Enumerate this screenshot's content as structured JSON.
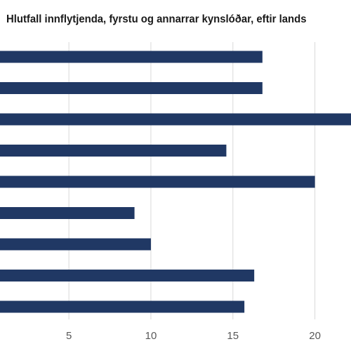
{
  "chart_data": {
    "type": "bar",
    "orientation": "horizontal",
    "title": "Hlutfall innflytjenda, fyrstu og annarrar kynslóðar, eftir lands",
    "xlabel": "",
    "ylabel": "",
    "categories": [
      "",
      "",
      "",
      "",
      "",
      "",
      "",
      "",
      ""
    ],
    "values": [
      16.8,
      16.8,
      22.2,
      14.6,
      20.0,
      9.0,
      10.0,
      16.3,
      15.7
    ],
    "xlim": [
      0.8,
      22.2
    ],
    "xticks": [
      5,
      10,
      15,
      20
    ],
    "xtick_labels": [
      "5",
      "10",
      "15",
      "20"
    ],
    "grid": "vertical",
    "legend": "none",
    "colors": {
      "bar": "#203864",
      "grid": "#d9d9d9",
      "tick_label": "#595959",
      "title": "#1a1a1a"
    }
  }
}
